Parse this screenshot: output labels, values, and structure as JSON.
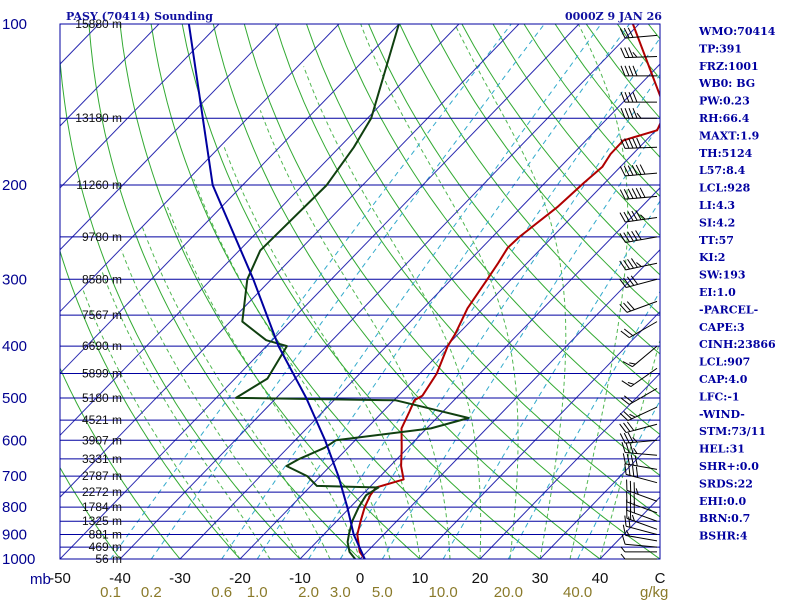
{
  "chart_data": {
    "type": "line",
    "title": "PASY (70414) Sounding",
    "datetime": "0000Z  9 JAN 26",
    "y_axis": {
      "label": "mb",
      "scale": "log",
      "range": [
        1000,
        100
      ],
      "ticks": [
        "100",
        "200",
        "300",
        "400",
        "500",
        "600",
        "700",
        "800",
        "900",
        "1000"
      ]
    },
    "x_axis": {
      "range": [
        -50,
        50
      ],
      "ticks": [
        "-50",
        "-40",
        "-30",
        "-20",
        "-10",
        "0",
        "10",
        "20",
        "30",
        "40",
        "C"
      ]
    },
    "mixing_ratio_axis": {
      "unit": "g/kg",
      "ticks": [
        "0.1",
        "0.2",
        "0.6",
        "1.0",
        "2.0",
        "3.0",
        "5.0",
        "10.0",
        "20.0",
        "40.0"
      ]
    },
    "height_labels": [
      {
        "p": 1000,
        "text": "56 m"
      },
      {
        "p": 950,
        "text": "469 m"
      },
      {
        "p": 900,
        "text": "881 m"
      },
      {
        "p": 850,
        "text": "1325 m"
      },
      {
        "p": 800,
        "text": "1784 m"
      },
      {
        "p": 750,
        "text": "2272 m"
      },
      {
        "p": 700,
        "text": "2787 m"
      },
      {
        "p": 650,
        "text": "3331 m"
      },
      {
        "p": 600,
        "text": "3907 m"
      },
      {
        "p": 550,
        "text": "4521 m"
      },
      {
        "p": 500,
        "text": "5180 m"
      },
      {
        "p": 450,
        "text": "5899 m"
      },
      {
        "p": 400,
        "text": "6690 m"
      },
      {
        "p": 350,
        "text": "7567 m"
      },
      {
        "p": 300,
        "text": "8580 m"
      },
      {
        "p": 250,
        "text": "9780 m"
      },
      {
        "p": 200,
        "text": "11260 m"
      },
      {
        "p": 150,
        "text": "13180 m"
      },
      {
        "p": 100,
        "text": "15880 m"
      }
    ],
    "series": [
      {
        "color": "#b00000",
        "points": [
          [
            1000,
            0.8
          ],
          [
            970,
            -1.2
          ],
          [
            930,
            -3.0
          ],
          [
            900,
            -4.4
          ],
          [
            850,
            -6.0
          ],
          [
            800,
            -7.6
          ],
          [
            760,
            -8.6
          ],
          [
            735,
            -8.9
          ],
          [
            710,
            -5.6
          ],
          [
            670,
            -8.2
          ],
          [
            620,
            -11.0
          ],
          [
            570,
            -14.2
          ],
          [
            530,
            -15.6
          ],
          [
            505,
            -16.6
          ],
          [
            495,
            -16.0
          ],
          [
            450,
            -17.2
          ],
          [
            400,
            -19.8
          ],
          [
            380,
            -20.5
          ],
          [
            340,
            -22.6
          ],
          [
            300,
            -24.0
          ],
          [
            280,
            -24.8
          ],
          [
            262,
            -25.7
          ],
          [
            250,
            -25.5
          ],
          [
            220,
            -24.0
          ],
          [
            198,
            -23.5
          ],
          [
            185,
            -23.0
          ],
          [
            175,
            -23.7
          ],
          [
            165,
            -23.8
          ],
          [
            158,
            -19.8
          ],
          [
            150,
            -20.8
          ],
          [
            145,
            -21.6
          ],
          [
            100,
            -41.0
          ]
        ]
      },
      {
        "color": "#104010",
        "points": [
          [
            1000,
            -0.8
          ],
          [
            970,
            -2.9
          ],
          [
            930,
            -4.8
          ],
          [
            900,
            -5.8
          ],
          [
            850,
            -7.4
          ],
          [
            800,
            -8.6
          ],
          [
            760,
            -9.3
          ],
          [
            735,
            -8.5
          ],
          [
            730,
            -19.0
          ],
          [
            700,
            -22.2
          ],
          [
            670,
            -27.3
          ],
          [
            650,
            -26.3
          ],
          [
            620,
            -23.9
          ],
          [
            600,
            -23.2
          ],
          [
            570,
            -9.3
          ],
          [
            545,
            -4.7
          ],
          [
            525,
            -12.0
          ],
          [
            505,
            -19.7
          ],
          [
            500,
            -46.7
          ],
          [
            460,
            -44.6
          ],
          [
            400,
            -46.6
          ],
          [
            390,
            -51.0
          ],
          [
            360,
            -58.0
          ],
          [
            300,
            -64.0
          ],
          [
            265,
            -66.5
          ],
          [
            250,
            -66.4
          ],
          [
            200,
            -66.0
          ],
          [
            170,
            -67.6
          ],
          [
            150,
            -69.4
          ],
          [
            100,
            -80.0
          ]
        ]
      },
      {
        "color": "#0000a0",
        "points": [
          [
            1000,
            0.8
          ],
          [
            900,
            -5.0
          ],
          [
            800,
            -10.5
          ],
          [
            700,
            -17.0
          ],
          [
            600,
            -25.0
          ],
          [
            500,
            -35.0
          ],
          [
            400,
            -48.0
          ],
          [
            300,
            -63.0
          ],
          [
            200,
            -85.0
          ],
          [
            100,
            -115.0
          ]
        ]
      }
    ],
    "winds": [
      {
        "p": 1000,
        "dir": 270,
        "speed": 5
      },
      {
        "p": 970,
        "dir": 270,
        "speed": 5
      },
      {
        "p": 950,
        "dir": 275,
        "speed": 10
      },
      {
        "p": 925,
        "dir": 280,
        "speed": 15
      },
      {
        "p": 900,
        "dir": 285,
        "speed": 20
      },
      {
        "p": 880,
        "dir": 290,
        "speed": 25
      },
      {
        "p": 850,
        "dir": 290,
        "speed": 30
      },
      {
        "p": 820,
        "dir": 290,
        "speed": 30
      },
      {
        "p": 780,
        "dir": 290,
        "speed": 35
      },
      {
        "p": 720,
        "dir": 285,
        "speed": 40
      },
      {
        "p": 680,
        "dir": 280,
        "speed": 40
      },
      {
        "p": 640,
        "dir": 275,
        "speed": 35
      },
      {
        "p": 600,
        "dir": 265,
        "speed": 35
      },
      {
        "p": 560,
        "dir": 255,
        "speed": 30
      },
      {
        "p": 520,
        "dir": 245,
        "speed": 25
      },
      {
        "p": 480,
        "dir": 240,
        "speed": 20
      },
      {
        "p": 440,
        "dir": 235,
        "speed": 15
      },
      {
        "p": 400,
        "dir": 230,
        "speed": 15
      },
      {
        "p": 360,
        "dir": 240,
        "speed": 20
      },
      {
        "p": 330,
        "dir": 250,
        "speed": 30
      },
      {
        "p": 300,
        "dir": 255,
        "speed": 40
      },
      {
        "p": 280,
        "dir": 258,
        "speed": 45
      },
      {
        "p": 250,
        "dir": 260,
        "speed": 50
      },
      {
        "p": 230,
        "dir": 262,
        "speed": 55
      },
      {
        "p": 210,
        "dir": 265,
        "speed": 60
      },
      {
        "p": 190,
        "dir": 265,
        "speed": 60
      },
      {
        "p": 170,
        "dir": 268,
        "speed": 50
      },
      {
        "p": 150,
        "dir": 270,
        "speed": 45
      },
      {
        "p": 140,
        "dir": 270,
        "speed": 40
      },
      {
        "p": 125,
        "dir": 270,
        "speed": 40
      },
      {
        "p": 115,
        "dir": 268,
        "speed": 35
      },
      {
        "p": 105,
        "dir": 265,
        "speed": 30
      }
    ]
  },
  "indices": [
    "WMO:70414",
    "TP:391",
    "FRZ:1001",
    "WB0: BG",
    "PW:0.23",
    "RH:66.4",
    "MAXT:1.9",
    "TH:5124",
    "L57:8.4",
    "LCL:928",
    "LI:4.3",
    "SI:4.2",
    "TT:57",
    "KI:2",
    "SW:193",
    "EI:1.0",
    "-PARCEL-",
    "CAPE:3",
    "CINH:23866",
    "LCL:907",
    "CAP:4.0",
    "LFC:-1",
    "-WIND-",
    "STM:73/11",
    "HEL:31",
    "SHR+:0.0",
    "SRDS:22",
    "EHI:0.0",
    "BRN:0.7",
    "BSHR:4"
  ]
}
